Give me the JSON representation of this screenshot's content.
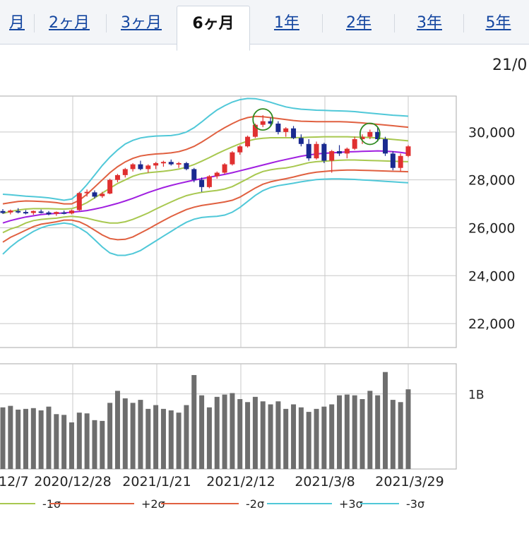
{
  "tabs": [
    {
      "label": "月",
      "active": false
    },
    {
      "label": "2ヶ月",
      "active": false
    },
    {
      "label": "3ヶ月",
      "active": false
    },
    {
      "label": "6ヶ月",
      "active": true
    },
    {
      "label": "1年",
      "active": false
    },
    {
      "label": "2年",
      "active": false
    },
    {
      "label": "3年",
      "active": false
    },
    {
      "label": "5年",
      "active": false
    }
  ],
  "date_label": "21/0",
  "colors": {
    "ma": "#a020e0",
    "sigma1": "#a8c850",
    "sigma2": "#e06040",
    "sigma3": "#50c8d8",
    "candle_up": "#e03030",
    "candle_down": "#1a2a90",
    "volume": "#6e6e6e",
    "grid": "#c8c8c8",
    "marker": "#2f8a20"
  },
  "chart_data": {
    "type": "candlestick-with-volume",
    "x_tick_labels": [
      "12/7",
      "2020/12/28",
      "2021/1/21",
      "2021/2/12",
      "2021/3/8",
      "2021/3/29"
    ],
    "price_axis": {
      "ylim": [
        21000,
        31500
      ],
      "tick_labels": [
        "30,000",
        "28,000",
        "26,000",
        "24,000",
        "22,000"
      ],
      "ticks": [
        30000,
        28000,
        26000,
        24000,
        22000
      ]
    },
    "volume_axis": {
      "ylim": [
        0,
        1.4
      ],
      "tick_labels": [
        "1B"
      ],
      "ticks": [
        1.0
      ]
    },
    "ma": [
      26200,
      26300,
      26380,
      26450,
      26500,
      26550,
      26580,
      26600,
      26620,
      26650,
      26680,
      26720,
      26780,
      26850,
      26930,
      27020,
      27120,
      27230,
      27350,
      27470,
      27580,
      27680,
      27770,
      27850,
      27920,
      27990,
      28050,
      28110,
      28170,
      28230,
      28300,
      28380,
      28460,
      28540,
      28620,
      28700,
      28780,
      28850,
      28920,
      28990,
      29040,
      29080,
      29110,
      29130,
      29150,
      29170,
      29180,
      29190,
      29200,
      29210,
      29200,
      29180,
      29150,
      29100
    ],
    "upper1": [
      26600,
      26680,
      26740,
      26780,
      26800,
      26800,
      26800,
      26790,
      26780,
      26800,
      26900,
      27050,
      27250,
      27450,
      27650,
      27850,
      28000,
      28150,
      28250,
      28300,
      28330,
      28360,
      28400,
      28450,
      28530,
      28640,
      28780,
      28930,
      29090,
      29240,
      29380,
      29510,
      29620,
      29700,
      29740,
      29760,
      29760,
      29760,
      29760,
      29770,
      29780,
      29790,
      29800,
      29800,
      29800,
      29800,
      29790,
      29780,
      29770,
      29750,
      29720,
      29690,
      29660,
      29630
    ],
    "lower1": [
      25800,
      25950,
      26050,
      26200,
      26300,
      26350,
      26380,
      26400,
      26450,
      26480,
      26450,
      26400,
      26320,
      26250,
      26200,
      26200,
      26250,
      26350,
      26480,
      26620,
      26780,
      26930,
      27080,
      27220,
      27340,
      27420,
      27480,
      27520,
      27560,
      27620,
      27720,
      27880,
      28050,
      28220,
      28350,
      28420,
      28470,
      28500,
      28560,
      28640,
      28720,
      28760,
      28780,
      28800,
      28820,
      28830,
      28830,
      28820,
      28810,
      28800,
      28790,
      28780,
      28770,
      28760
    ],
    "upper2": [
      27000,
      27050,
      27100,
      27120,
      27110,
      27100,
      27080,
      27050,
      27000,
      27000,
      27150,
      27400,
      27700,
      28000,
      28300,
      28550,
      28750,
      28900,
      29000,
      29050,
      29080,
      29100,
      29130,
      29180,
      29270,
      29400,
      29580,
      29780,
      29990,
      30180,
      30350,
      30500,
      30600,
      30650,
      30640,
      30600,
      30560,
      30520,
      30480,
      30450,
      30440,
      30430,
      30430,
      30430,
      30430,
      30420,
      30400,
      30380,
      30350,
      30320,
      30290,
      30260,
      30230,
      30200
    ],
    "lower2": [
      25400,
      25600,
      25750,
      25900,
      26050,
      26150,
      26200,
      26250,
      26320,
      26320,
      26250,
      26100,
      25900,
      25700,
      25550,
      25500,
      25520,
      25620,
      25780,
      25950,
      26130,
      26300,
      26470,
      26620,
      26760,
      26860,
      26930,
      26980,
      27030,
      27080,
      27150,
      27280,
      27470,
      27660,
      27820,
      27920,
      27990,
      28050,
      28120,
      28200,
      28270,
      28320,
      28350,
      28380,
      28400,
      28410,
      28410,
      28400,
      28390,
      28380,
      28370,
      28360,
      28350,
      28340
    ],
    "upper3": [
      27400,
      27380,
      27350,
      27320,
      27300,
      27280,
      27250,
      27200,
      27150,
      27200,
      27450,
      27800,
      28200,
      28600,
      28950,
      29250,
      29500,
      29650,
      29750,
      29800,
      29830,
      29840,
      29850,
      29900,
      30000,
      30180,
      30420,
      30680,
      30920,
      31100,
      31250,
      31350,
      31400,
      31390,
      31330,
      31240,
      31140,
      31050,
      30990,
      30950,
      30930,
      30910,
      30900,
      30890,
      30880,
      30870,
      30850,
      30820,
      30790,
      30760,
      30730,
      30700,
      30680,
      30660
    ],
    "lower3": [
      24900,
      25200,
      25450,
      25650,
      25850,
      26000,
      26100,
      26150,
      26200,
      26150,
      26000,
      25800,
      25500,
      25200,
      24950,
      24850,
      24850,
      24920,
      25050,
      25250,
      25450,
      25650,
      25850,
      26050,
      26230,
      26360,
      26430,
      26460,
      26480,
      26530,
      26650,
      26850,
      27100,
      27350,
      27550,
      27680,
      27760,
      27810,
      27860,
      27920,
      27970,
      28010,
      28030,
      28040,
      28040,
      28030,
      28020,
      28000,
      27980,
      27960,
      27940,
      27920,
      27900,
      27880
    ],
    "candles_note": "OHLC values read off price axis",
    "candles": [
      [
        26700,
        26780,
        26580,
        26620
      ],
      [
        26640,
        26760,
        26560,
        26720
      ],
      [
        26700,
        26820,
        26600,
        26680
      ],
      [
        26660,
        26740,
        26560,
        26600
      ],
      [
        26620,
        26720,
        26540,
        26700
      ],
      [
        26680,
        26760,
        26600,
        26640
      ],
      [
        26640,
        26700,
        26520,
        26560
      ],
      [
        26580,
        26680,
        26500,
        26660
      ],
      [
        26640,
        26720,
        26560,
        26600
      ],
      [
        26600,
        26760,
        26560,
        26720
      ],
      [
        26740,
        27500,
        26700,
        27450
      ],
      [
        27450,
        27600,
        27300,
        27500
      ],
      [
        27480,
        27560,
        27220,
        27300
      ],
      [
        27320,
        27500,
        27250,
        27420
      ],
      [
        27430,
        28050,
        27400,
        28000
      ],
      [
        28000,
        28250,
        27900,
        28200
      ],
      [
        28200,
        28500,
        28100,
        28450
      ],
      [
        28450,
        28700,
        28350,
        28650
      ],
      [
        28650,
        28800,
        28400,
        28450
      ],
      [
        28450,
        28650,
        28300,
        28600
      ],
      [
        28600,
        28750,
        28450,
        28700
      ],
      [
        28700,
        28800,
        28550,
        28750
      ],
      [
        28750,
        28850,
        28600,
        28650
      ],
      [
        28650,
        28750,
        28500,
        28700
      ],
      [
        28700,
        28750,
        28400,
        28450
      ],
      [
        28450,
        28500,
        27900,
        28000
      ],
      [
        28000,
        28100,
        27500,
        27700
      ],
      [
        27700,
        28200,
        27650,
        28150
      ],
      [
        28150,
        28350,
        28050,
        28300
      ],
      [
        28300,
        28700,
        28250,
        28650
      ],
      [
        28650,
        29200,
        28600,
        29150
      ],
      [
        29150,
        29450,
        29050,
        29400
      ],
      [
        29400,
        29850,
        29350,
        29800
      ],
      [
        29800,
        30350,
        29750,
        30300
      ],
      [
        30300,
        30700,
        30200,
        30450
      ],
      [
        30450,
        30600,
        30250,
        30350
      ],
      [
        30350,
        30450,
        29900,
        30000
      ],
      [
        30000,
        30200,
        29800,
        30150
      ],
      [
        30150,
        30250,
        29700,
        29750
      ],
      [
        29750,
        29900,
        29400,
        29500
      ],
      [
        29500,
        29700,
        28800,
        28900
      ],
      [
        28900,
        29600,
        28850,
        29500
      ],
      [
        29500,
        29550,
        28700,
        28800
      ],
      [
        28800,
        29250,
        28300,
        29200
      ],
      [
        29200,
        29450,
        29000,
        29100
      ],
      [
        29100,
        29350,
        28900,
        29300
      ],
      [
        29300,
        29800,
        29250,
        29700
      ],
      [
        29700,
        29900,
        29500,
        29800
      ],
      [
        29800,
        30100,
        29700,
        30000
      ],
      [
        30000,
        30200,
        29600,
        29700
      ],
      [
        29700,
        29800,
        29000,
        29100
      ],
      [
        29100,
        29200,
        28400,
        28500
      ],
      [
        28500,
        29100,
        28350,
        29000
      ],
      [
        29000,
        29450,
        28950,
        29400
      ]
    ],
    "volume": [
      0.82,
      0.84,
      0.79,
      0.8,
      0.81,
      0.78,
      0.83,
      0.73,
      0.72,
      0.62,
      0.75,
      0.74,
      0.65,
      0.64,
      0.88,
      1.04,
      0.94,
      0.88,
      0.92,
      0.8,
      0.85,
      0.8,
      0.78,
      0.75,
      0.85,
      1.25,
      0.98,
      0.82,
      0.96,
      0.99,
      1.01,
      0.93,
      0.89,
      0.96,
      0.9,
      0.86,
      0.9,
      0.8,
      0.86,
      0.82,
      0.76,
      0.8,
      0.83,
      0.86,
      0.98,
      0.99,
      0.98,
      0.93,
      1.04,
      0.98,
      1.29,
      0.92,
      0.89,
      1.06
    ],
    "highlight_markers": [
      {
        "index": 34
      },
      {
        "index": 48
      }
    ],
    "legend": [
      {
        "label": "-1σ",
        "color_key": "sigma1"
      },
      {
        "label": "+2σ",
        "color_key": "sigma2"
      },
      {
        "label": "-2σ",
        "color_key": "sigma2"
      },
      {
        "label": "+3σ",
        "color_key": "sigma3"
      },
      {
        "label": "-3σ",
        "color_key": "sigma3"
      }
    ]
  }
}
